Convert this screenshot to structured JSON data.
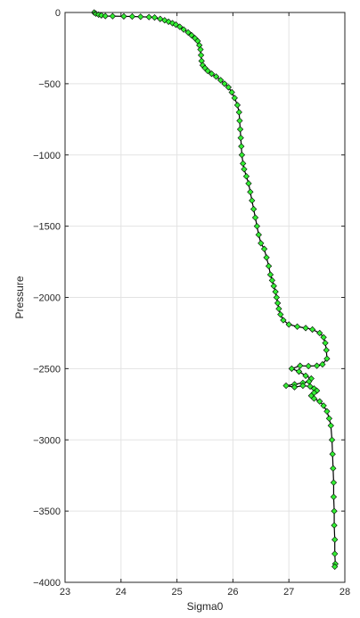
{
  "chart_data": {
    "type": "line",
    "title": "",
    "xlabel": "Sigma0",
    "ylabel": "Pressure",
    "xlim": [
      23,
      28
    ],
    "ylim": [
      -4000,
      0
    ],
    "x_ticks": [
      23,
      24,
      25,
      26,
      27,
      28
    ],
    "y_ticks": [
      0,
      -500,
      -1000,
      -1500,
      -2000,
      -2500,
      -3000,
      -3500,
      -4000
    ],
    "grid": true,
    "legend": "none",
    "series": [
      {
        "line_color": "#000000",
        "marker": "diamond",
        "marker_fill": "#33ee33",
        "marker_edge": "#000000",
        "points": [
          [
            23.52,
            0
          ],
          [
            23.55,
            -8
          ],
          [
            23.6,
            -15
          ],
          [
            23.65,
            -20
          ],
          [
            23.72,
            -25
          ],
          [
            23.85,
            -26
          ],
          [
            24.05,
            -27
          ],
          [
            24.2,
            -28
          ],
          [
            24.35,
            -30
          ],
          [
            24.5,
            -32
          ],
          [
            24.6,
            -35
          ],
          [
            24.7,
            -45
          ],
          [
            24.78,
            -55
          ],
          [
            24.85,
            -65
          ],
          [
            24.92,
            -75
          ],
          [
            24.98,
            -85
          ],
          [
            25.05,
            -100
          ],
          [
            25.12,
            -120
          ],
          [
            25.2,
            -140
          ],
          [
            25.26,
            -160
          ],
          [
            25.32,
            -180
          ],
          [
            25.37,
            -200
          ],
          [
            25.4,
            -230
          ],
          [
            25.42,
            -260
          ],
          [
            25.43,
            -300
          ],
          [
            25.44,
            -340
          ],
          [
            25.46,
            -370
          ],
          [
            25.5,
            -390
          ],
          [
            25.55,
            -410
          ],
          [
            25.62,
            -430
          ],
          [
            25.7,
            -450
          ],
          [
            25.78,
            -475
          ],
          [
            25.85,
            -500
          ],
          [
            25.92,
            -525
          ],
          [
            25.98,
            -560
          ],
          [
            26.03,
            -600
          ],
          [
            26.08,
            -650
          ],
          [
            26.11,
            -700
          ],
          [
            26.12,
            -760
          ],
          [
            26.13,
            -820
          ],
          [
            26.14,
            -880
          ],
          [
            26.15,
            -940
          ],
          [
            26.16,
            -1000
          ],
          [
            26.18,
            -1060
          ],
          [
            26.2,
            -1100
          ],
          [
            26.24,
            -1150
          ],
          [
            26.28,
            -1200
          ],
          [
            26.31,
            -1260
          ],
          [
            26.34,
            -1320
          ],
          [
            26.37,
            -1380
          ],
          [
            26.4,
            -1440
          ],
          [
            26.43,
            -1500
          ],
          [
            26.46,
            -1560
          ],
          [
            26.5,
            -1620
          ],
          [
            26.56,
            -1660
          ],
          [
            26.6,
            -1720
          ],
          [
            26.64,
            -1780
          ],
          [
            26.67,
            -1840
          ],
          [
            26.7,
            -1880
          ],
          [
            26.73,
            -1920
          ],
          [
            26.76,
            -1960
          ],
          [
            26.78,
            -2000
          ],
          [
            26.8,
            -2040
          ],
          [
            26.82,
            -2080
          ],
          [
            26.85,
            -2120
          ],
          [
            26.9,
            -2160
          ],
          [
            27.0,
            -2190
          ],
          [
            27.15,
            -2205
          ],
          [
            27.3,
            -2215
          ],
          [
            27.42,
            -2225
          ],
          [
            27.55,
            -2250
          ],
          [
            27.62,
            -2280
          ],
          [
            27.65,
            -2320
          ],
          [
            27.67,
            -2370
          ],
          [
            27.68,
            -2430
          ],
          [
            27.6,
            -2470
          ],
          [
            27.5,
            -2480
          ],
          [
            27.35,
            -2482
          ],
          [
            27.2,
            -2480
          ],
          [
            27.05,
            -2500
          ],
          [
            27.18,
            -2520
          ],
          [
            27.3,
            -2550
          ],
          [
            27.4,
            -2570
          ],
          [
            27.36,
            -2590
          ],
          [
            27.25,
            -2600
          ],
          [
            27.1,
            -2610
          ],
          [
            26.95,
            -2620
          ],
          [
            27.1,
            -2630
          ],
          [
            27.25,
            -2620
          ],
          [
            27.38,
            -2625
          ],
          [
            27.45,
            -2640
          ],
          [
            27.5,
            -2655
          ],
          [
            27.45,
            -2670
          ],
          [
            27.4,
            -2690
          ],
          [
            27.45,
            -2710
          ],
          [
            27.55,
            -2730
          ],
          [
            27.62,
            -2760
          ],
          [
            27.68,
            -2800
          ],
          [
            27.72,
            -2850
          ],
          [
            27.75,
            -2900
          ],
          [
            27.77,
            -3000
          ],
          [
            27.78,
            -3100
          ],
          [
            27.79,
            -3200
          ],
          [
            27.8,
            -3300
          ],
          [
            27.8,
            -3400
          ],
          [
            27.81,
            -3500
          ],
          [
            27.81,
            -3600
          ],
          [
            27.82,
            -3700
          ],
          [
            27.82,
            -3800
          ],
          [
            27.83,
            -3870
          ],
          [
            27.82,
            -3890
          ]
        ]
      }
    ]
  }
}
